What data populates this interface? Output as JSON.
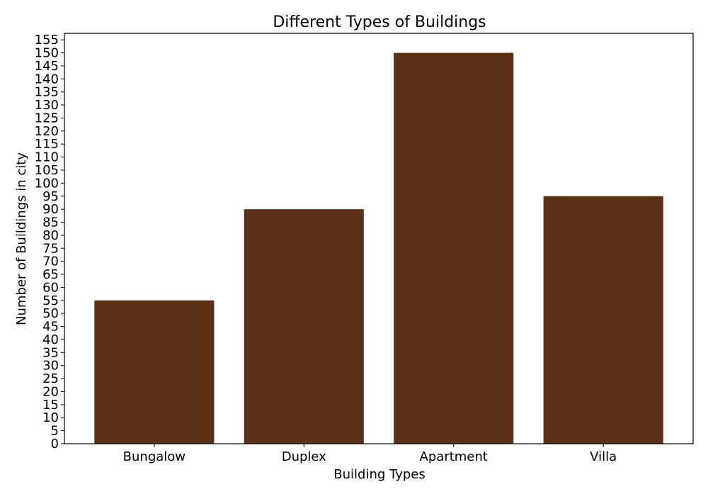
{
  "chart_data": {
    "type": "bar",
    "title": "Different Types of Buildings",
    "xlabel": "Building Types",
    "ylabel": "Number of Buildings in city",
    "categories": [
      "Bungalow",
      "Duplex",
      "Apartment",
      "Villa"
    ],
    "values": [
      55,
      90,
      150,
      95
    ],
    "ylim": [
      0,
      157.5
    ],
    "ytick_step": 5,
    "ytick_max": 155,
    "grid": false,
    "colors": {
      "bar": "#5c3118",
      "axis": "#000000",
      "background": "#ffffff"
    }
  }
}
